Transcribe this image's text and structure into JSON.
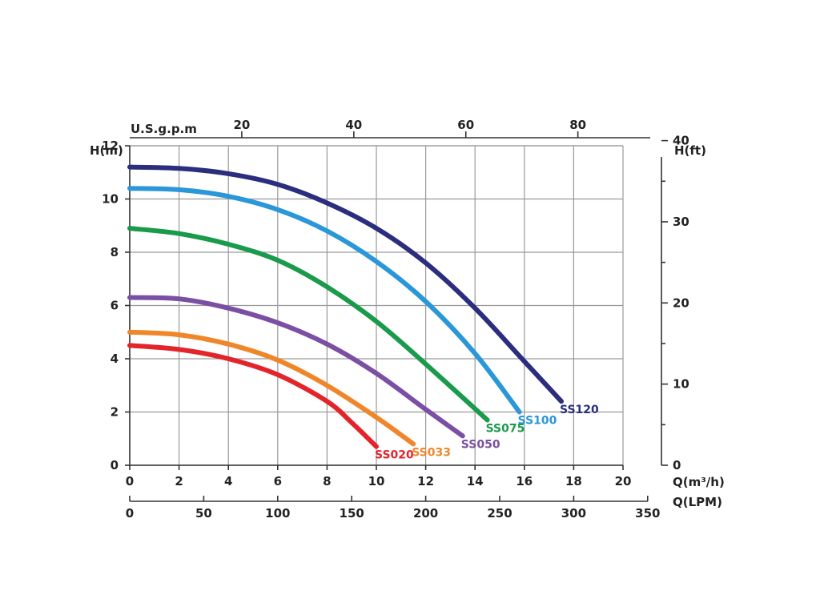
{
  "chart_data": {
    "type": "line",
    "title": "",
    "xlabel": "Q(m³/h)",
    "ylabel": "H(m)",
    "xlim": [
      0,
      20
    ],
    "ylim": [
      0,
      12
    ],
    "x_ticks": [
      0,
      2,
      4,
      6,
      8,
      10,
      12,
      14,
      16,
      18,
      20
    ],
    "y_ticks": [
      0,
      2,
      4,
      6,
      8,
      10,
      12
    ],
    "grid": true,
    "legend": "labels at curve ends",
    "secondary_axes": {
      "top": {
        "label": "U.S.g.p.m",
        "ticks": [
          20,
          40,
          60,
          80
        ]
      },
      "right": {
        "label": "H(ft)",
        "ticks": [
          0,
          10,
          20,
          30,
          40
        ]
      },
      "bottom2": {
        "label": "Q(LPM)",
        "ticks": [
          0,
          50,
          100,
          150,
          200,
          250,
          300,
          350
        ]
      }
    },
    "series": [
      {
        "name": "SS020",
        "color": "#e3242b",
        "x": [
          0,
          2,
          4,
          6,
          8,
          9,
          10
        ],
        "y": [
          4.5,
          4.35,
          4.0,
          3.4,
          2.4,
          1.6,
          0.7
        ]
      },
      {
        "name": "SS033",
        "color": "#f0862a",
        "x": [
          0,
          2,
          4,
          6,
          8,
          10,
          11.5
        ],
        "y": [
          5.0,
          4.9,
          4.55,
          3.95,
          3.0,
          1.8,
          0.8
        ]
      },
      {
        "name": "SS050",
        "color": "#7b4fa3",
        "x": [
          0,
          2,
          4,
          6,
          8,
          10,
          12,
          13.5
        ],
        "y": [
          6.3,
          6.25,
          5.9,
          5.35,
          4.55,
          3.45,
          2.1,
          1.1
        ]
      },
      {
        "name": "SS075",
        "color": "#1a9a4b",
        "x": [
          0,
          2,
          4,
          6,
          8,
          10,
          12,
          14.5
        ],
        "y": [
          8.9,
          8.7,
          8.3,
          7.7,
          6.7,
          5.4,
          3.8,
          1.7
        ]
      },
      {
        "name": "SS100",
        "color": "#2a97d8",
        "x": [
          0,
          2,
          4,
          6,
          8,
          10,
          12,
          14,
          15.8
        ],
        "y": [
          10.4,
          10.35,
          10.1,
          9.6,
          8.8,
          7.65,
          6.15,
          4.2,
          2.0
        ]
      },
      {
        "name": "SS120",
        "color": "#2b2d7e",
        "x": [
          0,
          2,
          4,
          6,
          8,
          10,
          12,
          14,
          16,
          17.5
        ],
        "y": [
          11.2,
          11.15,
          10.95,
          10.55,
          9.85,
          8.9,
          7.6,
          5.9,
          3.9,
          2.4
        ]
      }
    ]
  }
}
